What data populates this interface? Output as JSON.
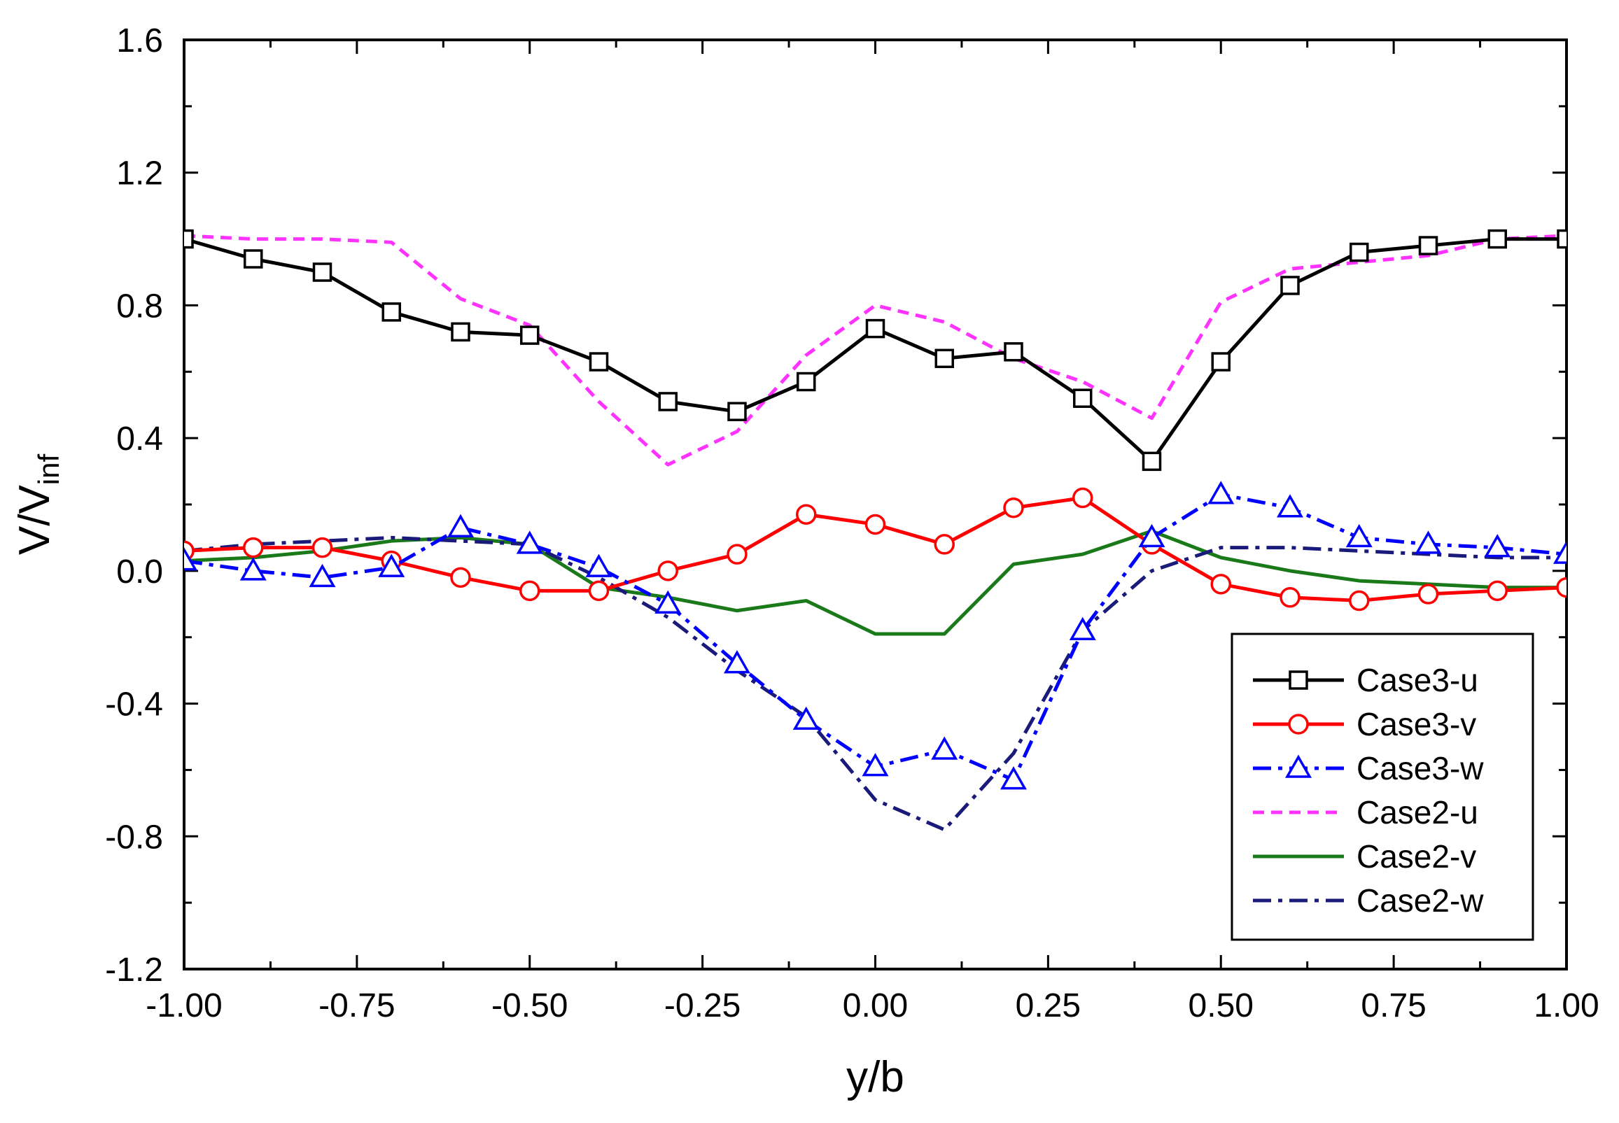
{
  "chart_data": {
    "type": "line",
    "xlabel": "y/b",
    "ylabel": {
      "main": "V/V",
      "sub": "inf"
    },
    "xlim": [
      -1.0,
      1.0
    ],
    "ylim": [
      -1.2,
      1.6
    ],
    "xticks": [
      "-1.00",
      "-0.75",
      "-0.50",
      "-0.25",
      "0.00",
      "0.25",
      "0.50",
      "0.75",
      "1.00"
    ],
    "yticks": [
      "-1.2",
      "-0.8",
      "-0.4",
      "0.0",
      "0.4",
      "0.8",
      "1.2",
      "1.6"
    ],
    "grid": false,
    "legend_position": "lower-right",
    "series": [
      {
        "name": "Case3-u",
        "color": "#000000",
        "line": "solid",
        "marker": "square",
        "x": [
          -1.0,
          -0.9,
          -0.8,
          -0.7,
          -0.6,
          -0.5,
          -0.4,
          -0.3,
          -0.2,
          -0.1,
          0.0,
          0.1,
          0.2,
          0.3,
          0.4,
          0.5,
          0.6,
          0.7,
          0.8,
          0.9,
          1.0
        ],
        "y": [
          1.0,
          0.94,
          0.9,
          0.78,
          0.72,
          0.71,
          0.63,
          0.51,
          0.48,
          0.57,
          0.73,
          0.64,
          0.66,
          0.52,
          0.33,
          0.63,
          0.86,
          0.96,
          0.98,
          1.0,
          1.0
        ]
      },
      {
        "name": "Case3-v",
        "color": "#ff0000",
        "line": "solid",
        "marker": "circle",
        "x": [
          -1.0,
          -0.9,
          -0.8,
          -0.7,
          -0.6,
          -0.5,
          -0.4,
          -0.3,
          -0.2,
          -0.1,
          0.0,
          0.1,
          0.2,
          0.3,
          0.4,
          0.5,
          0.6,
          0.7,
          0.8,
          0.9,
          1.0
        ],
        "y": [
          0.06,
          0.07,
          0.07,
          0.03,
          -0.02,
          -0.06,
          -0.06,
          0.0,
          0.05,
          0.17,
          0.14,
          0.08,
          0.19,
          0.22,
          0.08,
          -0.04,
          -0.08,
          -0.09,
          -0.07,
          -0.06,
          -0.05
        ]
      },
      {
        "name": "Case3-w",
        "color": "#0000ff",
        "line": "dashdot",
        "marker": "triangle",
        "x": [
          -1.0,
          -0.9,
          -0.8,
          -0.7,
          -0.6,
          -0.5,
          -0.4,
          -0.3,
          -0.2,
          -0.1,
          0.0,
          0.1,
          0.2,
          0.3,
          0.4,
          0.5,
          0.6,
          0.7,
          0.8,
          0.9,
          1.0
        ],
        "y": [
          0.03,
          0.0,
          -0.02,
          0.01,
          0.13,
          0.08,
          0.01,
          -0.1,
          -0.28,
          -0.45,
          -0.59,
          -0.54,
          -0.63,
          -0.18,
          0.1,
          0.23,
          0.19,
          0.1,
          0.08,
          0.07,
          0.05
        ]
      },
      {
        "name": "Case2-u",
        "color": "#ff33ff",
        "line": "dashed",
        "marker": "none",
        "x": [
          -1.0,
          -0.9,
          -0.8,
          -0.7,
          -0.6,
          -0.5,
          -0.4,
          -0.3,
          -0.2,
          -0.1,
          0.0,
          0.1,
          0.2,
          0.3,
          0.4,
          0.5,
          0.6,
          0.7,
          0.8,
          0.9,
          1.0
        ],
        "y": [
          1.01,
          1.0,
          1.0,
          0.99,
          0.82,
          0.74,
          0.51,
          0.32,
          0.42,
          0.65,
          0.8,
          0.75,
          0.64,
          0.57,
          0.46,
          0.81,
          0.91,
          0.93,
          0.95,
          1.0,
          1.01
        ]
      },
      {
        "name": "Case2-v",
        "color": "#1a7a1a",
        "line": "solid",
        "marker": "none",
        "x": [
          -1.0,
          -0.9,
          -0.8,
          -0.7,
          -0.6,
          -0.5,
          -0.4,
          -0.3,
          -0.2,
          -0.1,
          0.0,
          0.1,
          0.2,
          0.3,
          0.4,
          0.5,
          0.6,
          0.7,
          0.8,
          0.9,
          1.0
        ],
        "y": [
          0.03,
          0.04,
          0.06,
          0.09,
          0.1,
          0.08,
          -0.05,
          -0.08,
          -0.12,
          -0.09,
          -0.19,
          -0.19,
          0.02,
          0.05,
          0.12,
          0.04,
          0.0,
          -0.03,
          -0.04,
          -0.05,
          -0.05
        ]
      },
      {
        "name": "Case2-w",
        "color": "#1a1a7a",
        "line": "dashdot",
        "marker": "none",
        "x": [
          -1.0,
          -0.9,
          -0.8,
          -0.7,
          -0.6,
          -0.5,
          -0.4,
          -0.3,
          -0.2,
          -0.1,
          0.0,
          0.1,
          0.2,
          0.3,
          0.4,
          0.5,
          0.6,
          0.7,
          0.8,
          0.9,
          1.0
        ],
        "y": [
          0.06,
          0.08,
          0.09,
          0.1,
          0.09,
          0.08,
          -0.02,
          -0.14,
          -0.3,
          -0.44,
          -0.69,
          -0.78,
          -0.55,
          -0.18,
          0.0,
          0.07,
          0.07,
          0.06,
          0.05,
          0.04,
          0.04
        ]
      }
    ]
  }
}
